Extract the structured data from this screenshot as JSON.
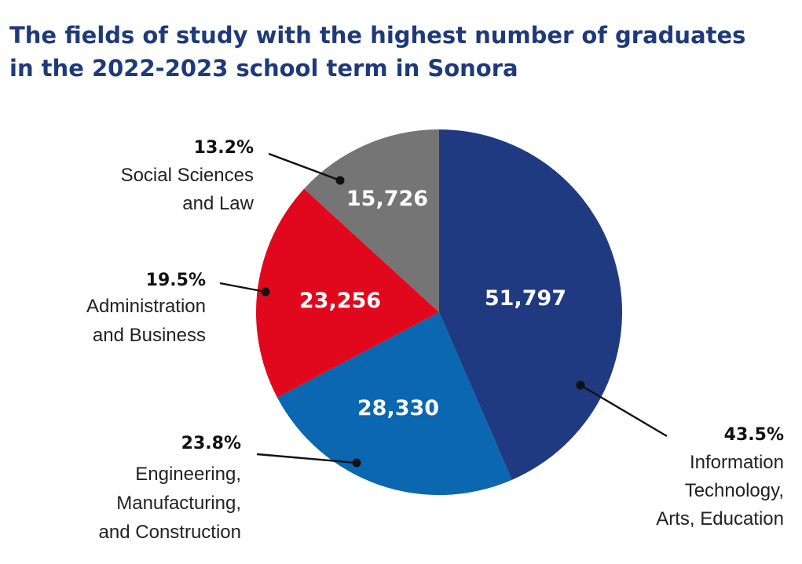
{
  "chart_data": {
    "type": "pie",
    "title": "The fields of study with the highest number of graduates in the 2022-2023 school term in Sonora",
    "slices": [
      {
        "label_lines": [
          "Information",
          "Technology,",
          "Arts, Education"
        ],
        "value": 51797,
        "value_label": "51,797",
        "percent": "43.5%",
        "color": "#1f3a80"
      },
      {
        "label_lines": [
          "Engineering,",
          "Manufacturing,",
          "and Construction"
        ],
        "value": 28330,
        "value_label": "28,330",
        "percent": "23.8%",
        "color": "#0a67b0"
      },
      {
        "label_lines": [
          "Administration",
          "and Business"
        ],
        "value": 23256,
        "value_label": "23,256",
        "percent": "19.5%",
        "color": "#e1081e"
      },
      {
        "label_lines": [
          "Social Sciences",
          "and Law"
        ],
        "value": 15726,
        "value_label": "15,726",
        "percent": "13.2%",
        "color": "#757575"
      }
    ]
  }
}
